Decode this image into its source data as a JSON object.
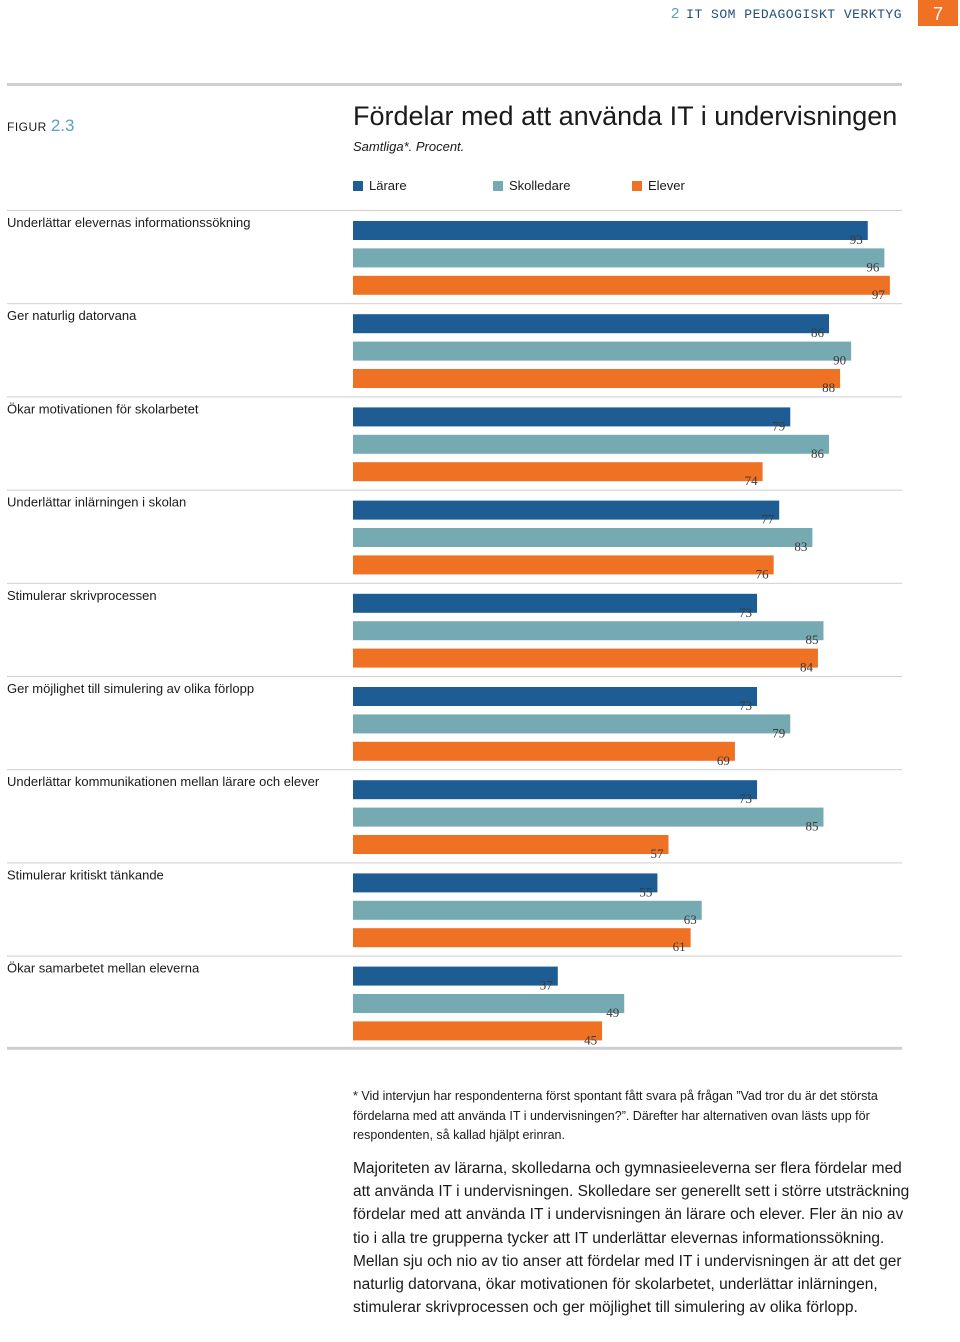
{
  "header": {
    "chapter_number": "2",
    "chapter_title": "IT SOM PEDAGOGISKT VERKTYG",
    "page_number": "7"
  },
  "figure": {
    "label_prefix": "FIGUR",
    "label_number": "2.3"
  },
  "colors": {
    "larare": "#1d5d94",
    "skolledare": "#76aab3",
    "elever": "#ef7124",
    "rule": "#cfcfcf"
  },
  "chart_data": {
    "type": "bar",
    "orientation": "horizontal",
    "title": "Fördelar med att använda IT i undervisningen",
    "subtitle": "Samtliga*. Procent.",
    "xlim": [
      0,
      100
    ],
    "categories": [
      "Underlättar elevernas informationssökning",
      "Ger naturlig datorvana",
      "Ökar motivationen för skolarbetet",
      "Underlättar inlärningen i skolan",
      "Stimulerar skrivprocessen",
      "Ger möjlighet till simulering av olika förlopp",
      "Underlättar kommunikationen mellan lärare och elever",
      "Stimulerar kritiskt tänkande",
      "Ökar samarbetet mellan eleverna"
    ],
    "series": [
      {
        "name": "Lärare",
        "values": [
          93,
          86,
          79,
          77,
          73,
          73,
          73,
          55,
          37
        ]
      },
      {
        "name": "Skolledare",
        "values": [
          96,
          90,
          86,
          83,
          85,
          79,
          85,
          63,
          49
        ]
      },
      {
        "name": "Elever",
        "values": [
          97,
          88,
          74,
          76,
          84,
          69,
          57,
          61,
          45
        ]
      }
    ]
  },
  "footnote": "* Vid intervjun har respondenterna först spontant fått svara på frågan ”Vad tror du är det största fördelarna med att använda IT i undervisningen?”. Därefter har alternativen ovan lästs upp för respondenten, så kallad hjälpt erinran.",
  "body_text": "Majoriteten av lärarna, skolledarna och gymnasieeleverna ser flera fördelar med att använda IT i undervisningen. Skolledare ser generellt sett i större utsträckning fördelar med att använda IT i undervisningen än lärare och elever. Fler än nio av tio i alla tre grupperna tycker att IT underlättar elevernas informationssökning. Mellan sju och nio av tio anser att fördelar med IT i undervisningen är att det ger naturlig datorvana, ökar motivationen för skolarbetet, underlättar inlärningen, stimulerar skrivprocessen och ger möjlighet till simulering av olika förlopp."
}
